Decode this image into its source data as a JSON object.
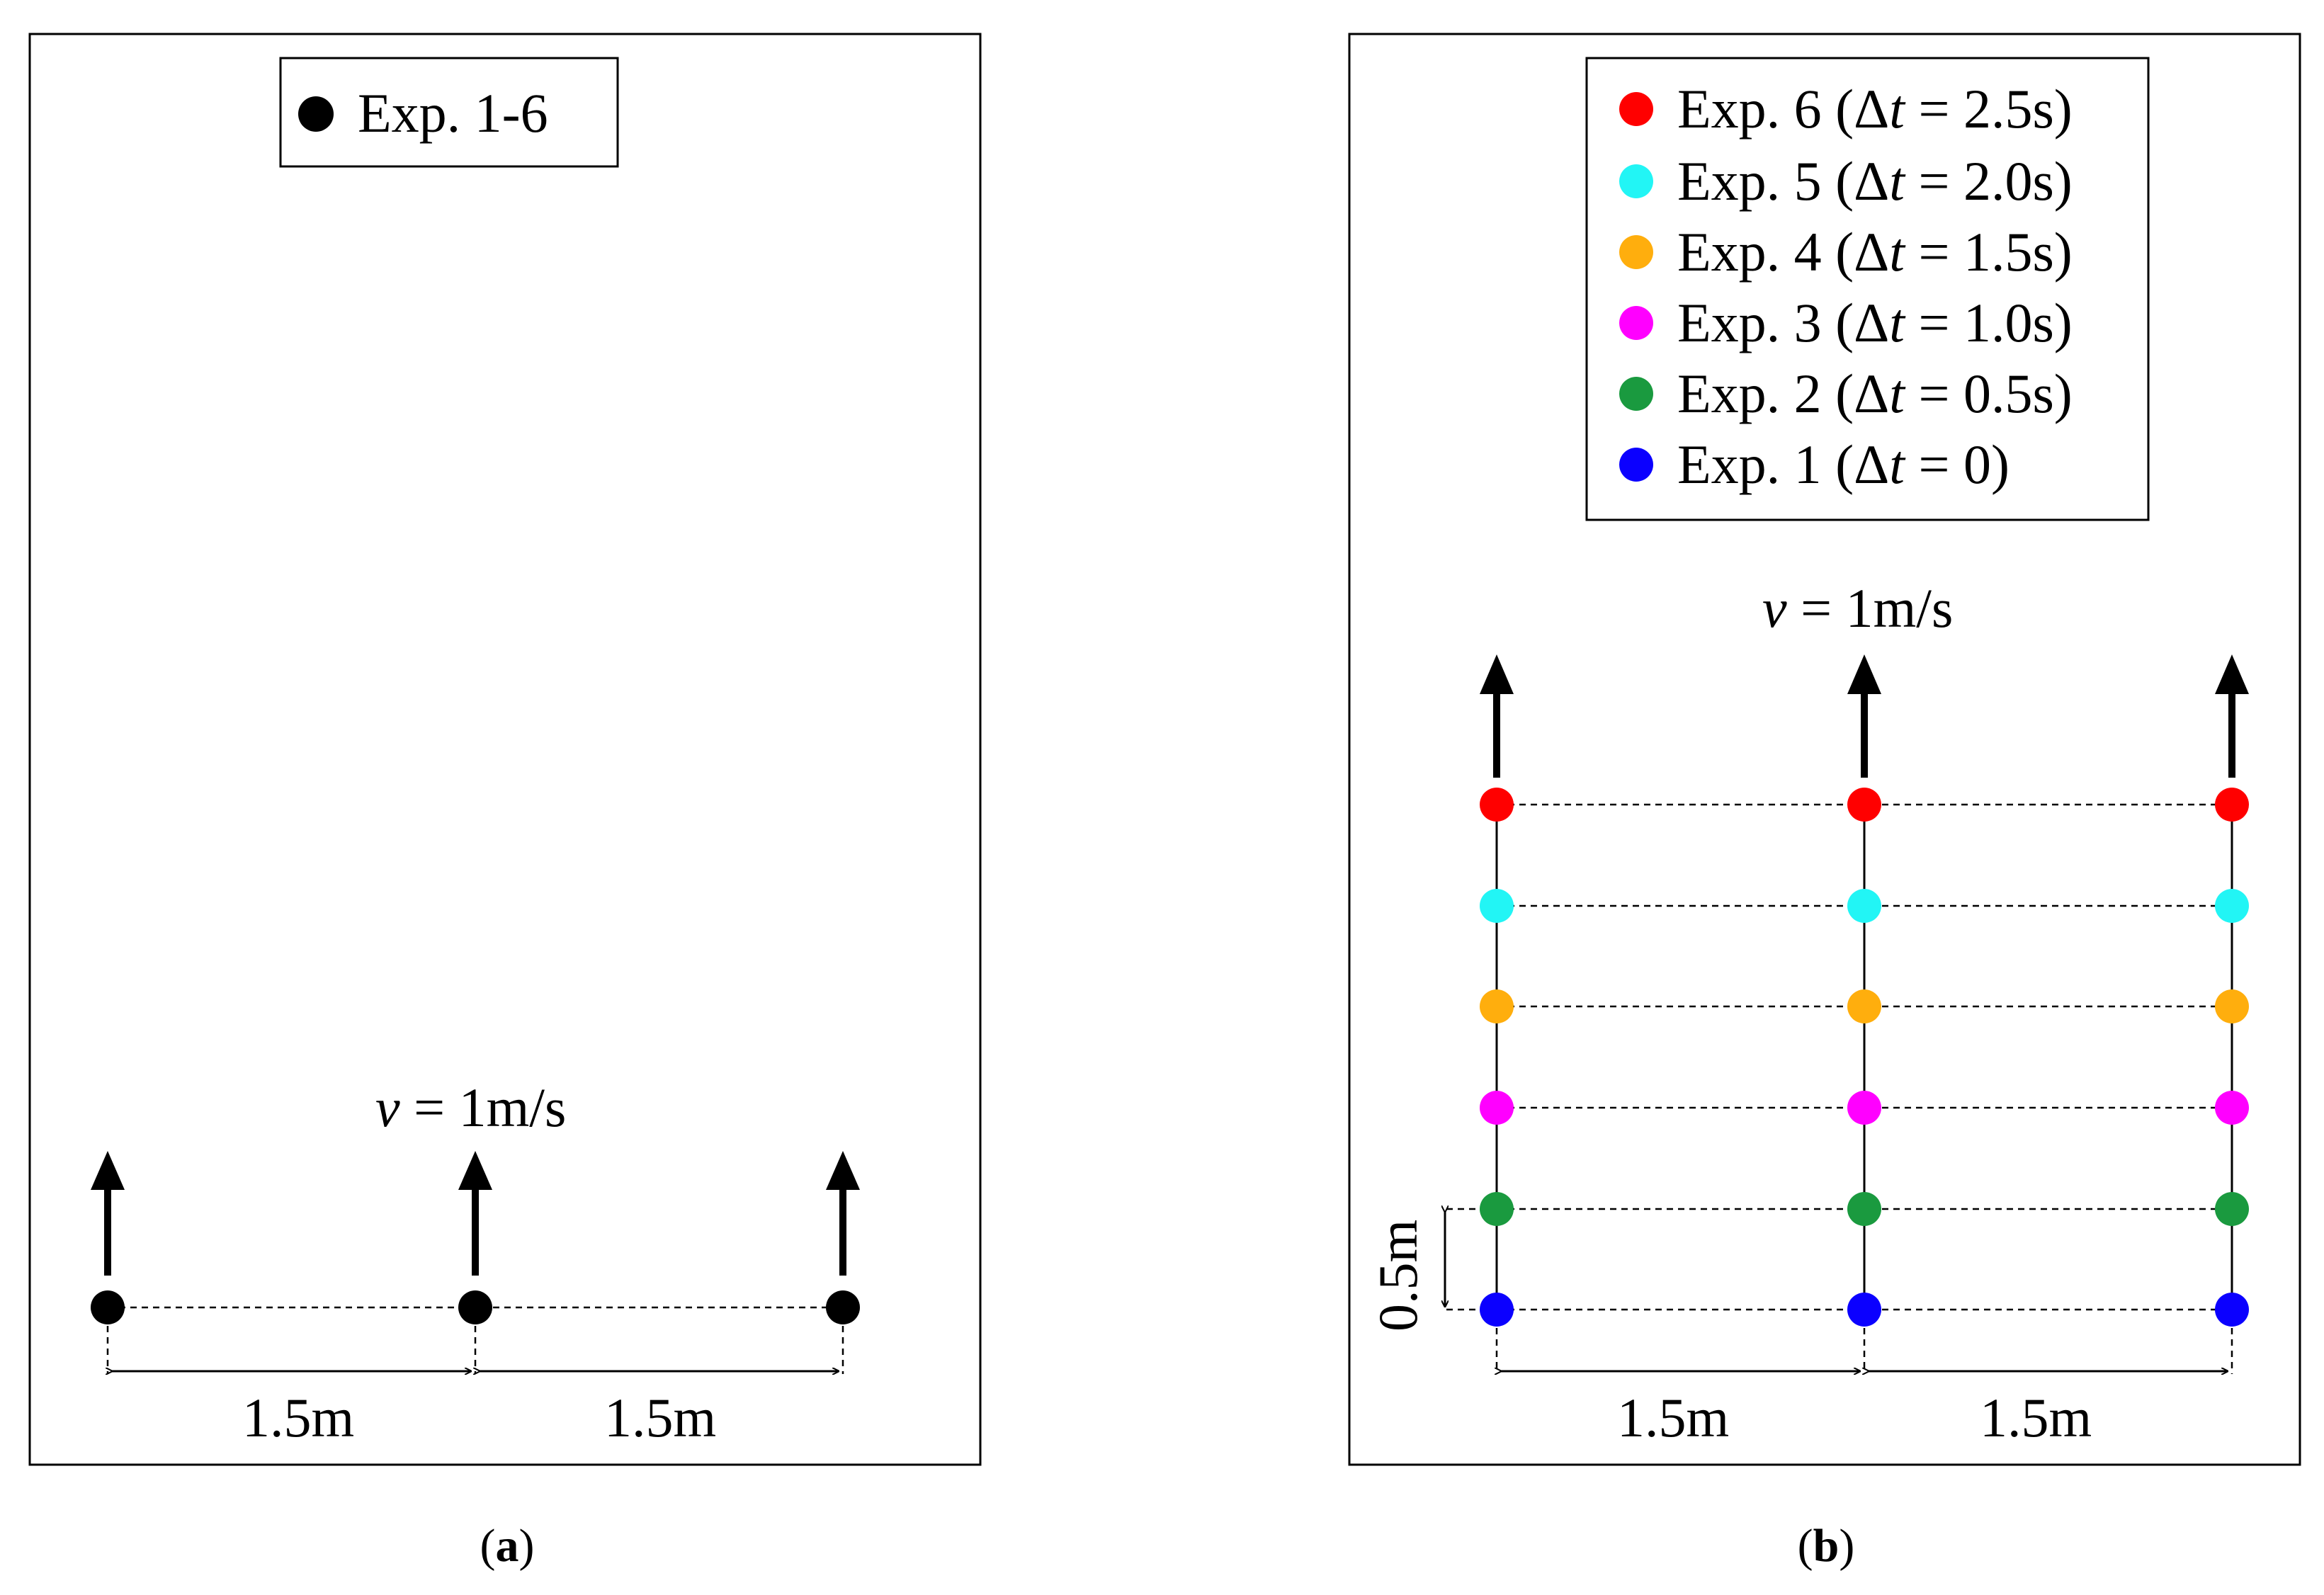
{
  "panel_a": {
    "legend": {
      "label": "Exp. 1-6",
      "color": "#000000"
    },
    "velocity": {
      "symbol": "v",
      "rest": " = 1m/s"
    },
    "spacings": [
      "1.5m",
      "1.5m"
    ],
    "caption": {
      "open": "(",
      "letter": "a",
      "close": ")"
    },
    "agents": 3,
    "dot_color": "#000000"
  },
  "panel_b": {
    "legend": [
      {
        "prefix": "Exp. 6 (Δ",
        "t": "t",
        "suffix": " = 2.5s)",
        "color": "#ff0000"
      },
      {
        "prefix": "Exp. 5 (Δ",
        "t": "t",
        "suffix": " = 2.0s)",
        "color": "#22f5f5"
      },
      {
        "prefix": "Exp. 4 (Δ",
        "t": "t",
        "suffix": " = 1.5s)",
        "color": "#ffae0d"
      },
      {
        "prefix": "Exp. 3 (Δ",
        "t": "t",
        "suffix": " = 1.0s)",
        "color": "#ff00ff"
      },
      {
        "prefix": "Exp. 2 (Δ",
        "t": "t",
        "suffix": " = 0.5s)",
        "color": "#1a9a3f"
      },
      {
        "prefix": "Exp. 1 (Δ",
        "t": "t",
        "suffix": " = 0)",
        "color": "#0b00ff"
      }
    ],
    "velocity": {
      "symbol": "v",
      "rest": " = 1m/s"
    },
    "spacings": [
      "1.5m",
      "1.5m"
    ],
    "row_spacing": "0.5m",
    "caption": {
      "open": "(",
      "letter": "b",
      "close": ")"
    },
    "columns": 3
  }
}
